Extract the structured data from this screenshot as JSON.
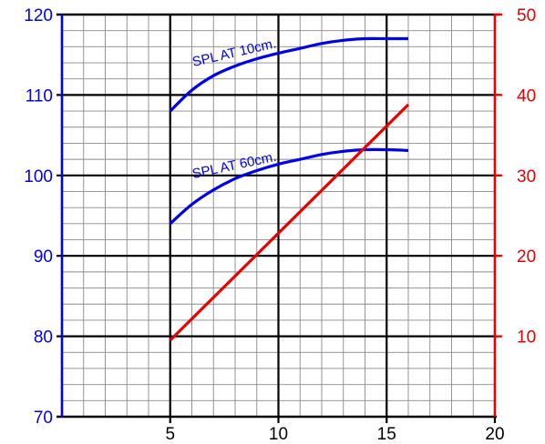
{
  "chart_data": {
    "type": "line",
    "x_axis": {
      "range": [
        0,
        20
      ],
      "ticks": [
        5,
        10,
        15,
        20
      ],
      "tick_labels": [
        "5",
        "10",
        "15",
        "20"
      ],
      "minor_step": 1
    },
    "y_axis_left": {
      "range": [
        70,
        120
      ],
      "ticks": [
        70,
        80,
        90,
        100,
        110,
        120
      ],
      "tick_labels": [
        "70",
        "80",
        "90",
        "100",
        "110",
        "120"
      ],
      "minor_step": 2,
      "color": "#0000e6"
    },
    "y_axis_right": {
      "range": [
        0,
        50
      ],
      "ticks": [
        10,
        20,
        30,
        40,
        50
      ],
      "tick_labels": [
        "10",
        "20",
        "30",
        "40",
        "50"
      ],
      "color": "#e60000"
    },
    "grid": true,
    "series": [
      {
        "name": "SPL AT 10cm.",
        "axis": "left",
        "color": "#0000e6",
        "label_angle": -13,
        "points": [
          [
            5,
            108
          ],
          [
            6,
            110.6
          ],
          [
            7,
            112.4
          ],
          [
            8,
            113.6
          ],
          [
            9,
            114.5
          ],
          [
            10,
            115.2
          ],
          [
            11,
            115.8
          ],
          [
            12,
            116.4
          ],
          [
            13,
            116.8
          ],
          [
            14,
            117
          ],
          [
            15,
            117
          ],
          [
            16,
            117
          ]
        ]
      },
      {
        "name": "SPL AT 60cm.",
        "axis": "left",
        "color": "#0000e6",
        "label_angle": -12,
        "points": [
          [
            5,
            94
          ],
          [
            6,
            96.4
          ],
          [
            7,
            98.2
          ],
          [
            8,
            99.6
          ],
          [
            9,
            100.6
          ],
          [
            10,
            101.4
          ],
          [
            11,
            102
          ],
          [
            12,
            102.6
          ],
          [
            13,
            103
          ],
          [
            14,
            103.2
          ],
          [
            15,
            103.2
          ],
          [
            16,
            103.1
          ]
        ]
      },
      {
        "axis": "right",
        "color": "#e60000",
        "points": [
          [
            5,
            9.5
          ],
          [
            16,
            38.8
          ]
        ]
      }
    ]
  }
}
